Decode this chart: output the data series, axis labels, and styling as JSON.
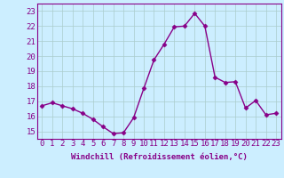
{
  "x": [
    0,
    1,
    2,
    3,
    4,
    5,
    6,
    7,
    8,
    9,
    10,
    11,
    12,
    13,
    14,
    15,
    16,
    17,
    18,
    19,
    20,
    21,
    22,
    23
  ],
  "y": [
    16.7,
    16.9,
    16.7,
    16.5,
    16.2,
    15.8,
    15.3,
    14.85,
    14.9,
    15.9,
    17.85,
    19.75,
    20.8,
    21.95,
    22.0,
    22.85,
    22.0,
    18.6,
    18.25,
    18.3,
    16.55,
    17.05,
    16.1,
    16.2
  ],
  "line_color": "#880088",
  "marker": "D",
  "markersize": 2.5,
  "linewidth": 1.0,
  "background_color": "#cceeff",
  "grid_color": "#aacccc",
  "xlabel": "Windchill (Refroidissement éolien,°C)",
  "xlabel_fontsize": 6.5,
  "xtick_labels": [
    "0",
    "1",
    "2",
    "3",
    "4",
    "5",
    "6",
    "7",
    "8",
    "9",
    "10",
    "11",
    "12",
    "13",
    "14",
    "15",
    "16",
    "17",
    "18",
    "19",
    "20",
    "21",
    "22",
    "23"
  ],
  "ytick_values": [
    15,
    16,
    17,
    18,
    19,
    20,
    21,
    22,
    23
  ],
  "ylim": [
    14.5,
    23.5
  ],
  "xlim": [
    -0.5,
    23.5
  ],
  "tick_fontsize": 6.5,
  "border_color": "#880088"
}
